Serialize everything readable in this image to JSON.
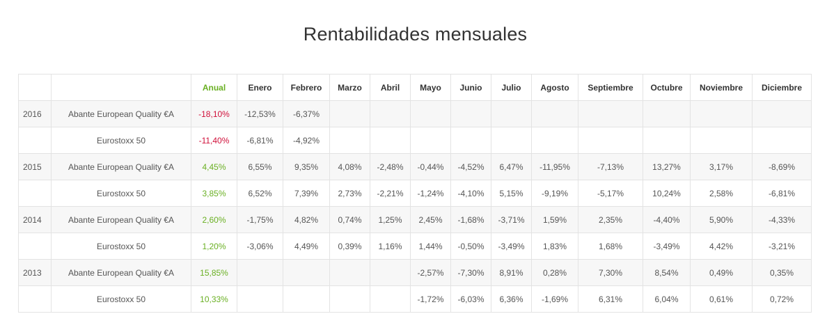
{
  "title": "Rentabilidades mensuales",
  "colors": {
    "accent_green": "#6ab023",
    "negative_red": "#d0103a",
    "row_shade": "#f7f7f7",
    "border": "#e3e3e3"
  },
  "table": {
    "headers": [
      "",
      "",
      "Anual",
      "Enero",
      "Febrero",
      "Marzo",
      "Abril",
      "Mayo",
      "Junio",
      "Julio",
      "Agosto",
      "Septiembre",
      "Octubre",
      "Noviembre",
      "Diciembre"
    ],
    "rows": [
      {
        "year": "2016",
        "fund": "Abante European Quality €A",
        "anual": "-18,10%",
        "anual_sign": "neg",
        "months": [
          "-12,53%",
          "-6,37%",
          "",
          "",
          "",
          "",
          "",
          "",
          "",
          "",
          "",
          ""
        ]
      },
      {
        "year": "",
        "fund": "Eurostoxx 50",
        "anual": "-11,40%",
        "anual_sign": "neg",
        "months": [
          "-6,81%",
          "-4,92%",
          "",
          "",
          "",
          "",
          "",
          "",
          "",
          "",
          "",
          ""
        ]
      },
      {
        "year": "2015",
        "fund": "Abante European Quality €A",
        "anual": "4,45%",
        "anual_sign": "pos",
        "months": [
          "6,55%",
          "9,35%",
          "4,08%",
          "-2,48%",
          "-0,44%",
          "-4,52%",
          "6,47%",
          "-11,95%",
          "-7,13%",
          "13,27%",
          "3,17%",
          "-8,69%"
        ]
      },
      {
        "year": "",
        "fund": "Eurostoxx 50",
        "anual": "3,85%",
        "anual_sign": "pos",
        "months": [
          "6,52%",
          "7,39%",
          "2,73%",
          "-2,21%",
          "-1,24%",
          "-4,10%",
          "5,15%",
          "-9,19%",
          "-5,17%",
          "10,24%",
          "2,58%",
          "-6,81%"
        ]
      },
      {
        "year": "2014",
        "fund": "Abante European Quality €A",
        "anual": "2,60%",
        "anual_sign": "pos",
        "months": [
          "-1,75%",
          "4,82%",
          "0,74%",
          "1,25%",
          "2,45%",
          "-1,68%",
          "-3,71%",
          "1,59%",
          "2,35%",
          "-4,40%",
          "5,90%",
          "-4,33%"
        ]
      },
      {
        "year": "",
        "fund": "Eurostoxx 50",
        "anual": "1,20%",
        "anual_sign": "pos",
        "months": [
          "-3,06%",
          "4,49%",
          "0,39%",
          "1,16%",
          "1,44%",
          "-0,50%",
          "-3,49%",
          "1,83%",
          "1,68%",
          "-3,49%",
          "4,42%",
          "-3,21%"
        ]
      },
      {
        "year": "2013",
        "fund": "Abante European Quality €A",
        "anual": "15,85%",
        "anual_sign": "pos",
        "months": [
          "",
          "",
          "",
          "",
          "-2,57%",
          "-7,30%",
          "8,91%",
          "0,28%",
          "7,30%",
          "8,54%",
          "0,49%",
          "0,35%"
        ]
      },
      {
        "year": "",
        "fund": "Eurostoxx 50",
        "anual": "10,33%",
        "anual_sign": "pos",
        "months": [
          "",
          "",
          "",
          "",
          "-1,72%",
          "-6,03%",
          "6,36%",
          "-1,69%",
          "6,31%",
          "6,04%",
          "0,61%",
          "0,72%"
        ]
      }
    ]
  }
}
